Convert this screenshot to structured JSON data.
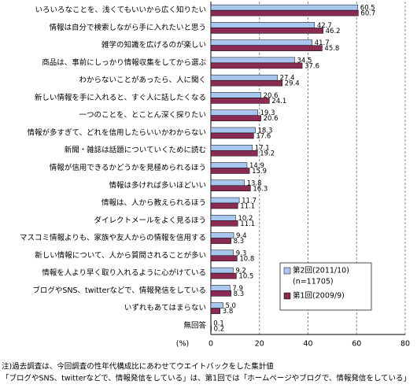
{
  "chart_data": {
    "type": "bar",
    "orientation": "horizontal",
    "categories": [
      "いろいろなことを、浅くてもいいから広く知りたい",
      "情報は自分で検索しながら手に入れたいと思う",
      "雑学の知識を広げるのが楽しい",
      "商品は、事前にしっかり情報収集をしてから選ぶ",
      "わからないことがあったら、人に聞く",
      "新しい情報を手に入れると、すぐ人に話したくなる",
      "一つのことを、とことん深く探りたい",
      "情報が多すぎて、どれを信用したらいいかわからない",
      "新聞・雑誌は話題についていくために読む",
      "情報が信用できるかどうかを見極められるほう",
      "情報は多ければ多いほどいい",
      "情報は、人から教えられるほう",
      "ダイレクトメールをよく見るほう",
      "マスコミ情報よりも、家族や友人からの情報を信用する",
      "新しい情報について、人から質問されることが多い",
      "情報を人より早く取り入れるように心がけている",
      "ブログやSNS、twitterなどで、情報発信をしている",
      "いずれもあてはまらない",
      "無回答"
    ],
    "series": [
      {
        "name": "第2回(2011/10)",
        "note": "(n=11705)",
        "color": "#a9c6ee",
        "values": [
          60.5,
          42.7,
          41.7,
          34.5,
          27.4,
          20.6,
          19.3,
          18.3,
          17.1,
          14.9,
          13.8,
          11.7,
          10.2,
          9.4,
          9.3,
          9.2,
          7.9,
          5.0,
          0.1
        ],
        "value_labels": [
          "60.5",
          "42.7",
          "41.7",
          "34.5",
          "27.4",
          "20.6",
          "19.3",
          "18.3",
          "17.1",
          "14.9",
          "13.8",
          "11.7",
          "10.2",
          "9.4",
          "9.3",
          "9.2",
          "7.9",
          "5.0",
          "0.1"
        ]
      },
      {
        "name": "第1回(2009/9)",
        "color": "#8a2b54",
        "values": [
          60.7,
          46.2,
          45.8,
          37.6,
          29.4,
          24.1,
          20.6,
          17.6,
          19.2,
          15.9,
          16.3,
          11.1,
          11.1,
          8.3,
          10.8,
          10.5,
          8.3,
          3.8,
          0.2
        ],
        "value_labels": [
          "60.7",
          "46.2",
          "45.8",
          "37.6",
          "29.4",
          "24.1",
          "20.6",
          "17.6",
          "19.2",
          "15.9",
          "16.3",
          "11.1",
          "11.1",
          "8.3",
          "10.8",
          "10.5",
          "8.3",
          "3.8",
          "0.2"
        ]
      }
    ],
    "x_unit": "(%)",
    "xlim": [
      0,
      80
    ],
    "xticks": [
      0,
      20,
      40,
      60,
      80
    ],
    "grid": true,
    "legend": "lower right",
    "notes": [
      "注)過去調査は、今回調査の性年代構成比にあわせてウエイトバックをした集計値",
      "「ブログやSNS、twitterなどで、情報発信をしている」は、第1回では「ホームページやブログで、情報発信をしている」"
    ]
  }
}
